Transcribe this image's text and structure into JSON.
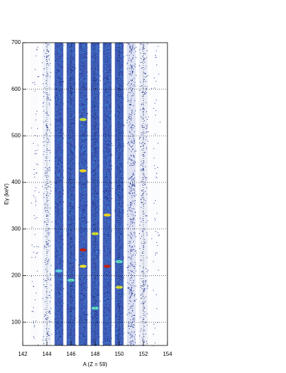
{
  "chart_data": {
    "type": "histogram2d",
    "xlabel": "A (Z = 59)",
    "ylabel": "Eγ (keV)",
    "xlim": [
      142,
      154
    ],
    "ylim": [
      50,
      700
    ],
    "xticks": [
      142,
      144,
      146,
      148,
      150,
      152,
      154
    ],
    "yticks": [
      100,
      200,
      300,
      400,
      500,
      600,
      700
    ],
    "grid": true,
    "x": [
      143,
      144,
      145,
      146,
      147,
      148,
      149,
      150,
      151,
      152,
      153
    ],
    "intensity": [
      0.08,
      0.3,
      1,
      1,
      1,
      1,
      1,
      1,
      0.6,
      0.35,
      0.06
    ],
    "color": "#1f3fa8",
    "peaks": [
      {
        "x": 147,
        "y": 255,
        "color": "#c0200a"
      },
      {
        "x": 149,
        "y": 220,
        "color": "#c0200a"
      },
      {
        "x": 147,
        "y": 425,
        "color": "#f0d020"
      },
      {
        "x": 149,
        "y": 330,
        "color": "#f0d020"
      },
      {
        "x": 147,
        "y": 535,
        "color": "#c8e040"
      },
      {
        "x": 147,
        "y": 220,
        "color": "#e8e030"
      },
      {
        "x": 148,
        "y": 290,
        "color": "#d8e030"
      },
      {
        "x": 150,
        "y": 175,
        "color": "#d8e030"
      },
      {
        "x": 146,
        "y": 190,
        "color": "#60e0c0"
      },
      {
        "x": 148,
        "y": 130,
        "color": "#60e0c0"
      },
      {
        "x": 150,
        "y": 230,
        "color": "#60e0c0"
      },
      {
        "x": 145,
        "y": 210,
        "color": "#60d0e0"
      }
    ]
  }
}
